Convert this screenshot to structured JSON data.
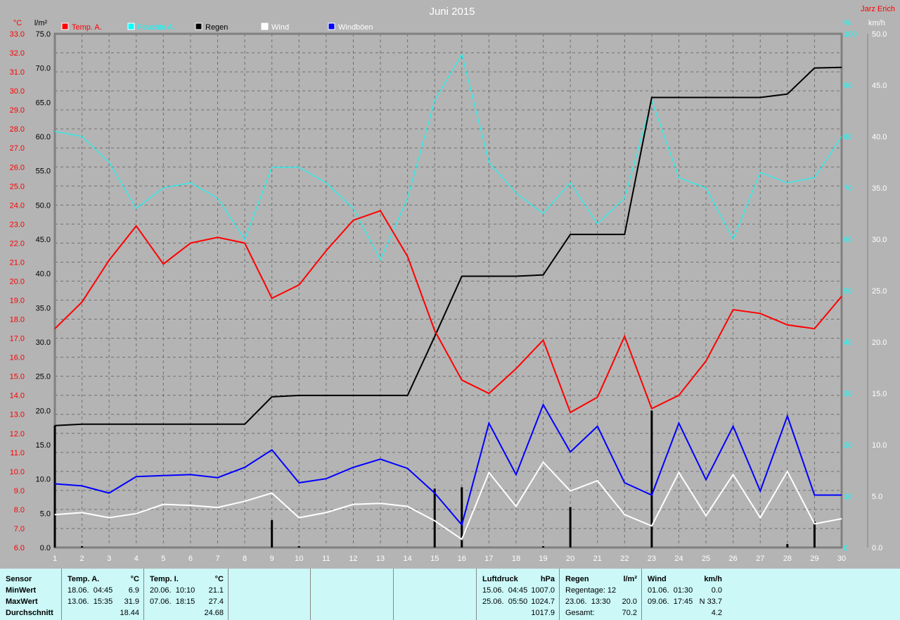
{
  "chart_data": {
    "type": "line",
    "title": "Juni 2015",
    "author": "Jarz Erich",
    "x": [
      1,
      2,
      3,
      4,
      5,
      6,
      7,
      8,
      9,
      10,
      11,
      12,
      13,
      14,
      15,
      16,
      17,
      18,
      19,
      20,
      21,
      22,
      23,
      24,
      25,
      26,
      27,
      28,
      29,
      30
    ],
    "xlim": [
      1,
      30
    ],
    "axes": {
      "temp": {
        "unit": "°C",
        "range": [
          6.0,
          33.0
        ],
        "step": 1.0,
        "color": "#ff0000",
        "side": "left"
      },
      "rain": {
        "unit": "l/m²",
        "range": [
          0.0,
          75.0
        ],
        "step": 5.0,
        "color": "#000000",
        "side": "left"
      },
      "humidity": {
        "unit": "%",
        "range": [
          0,
          100
        ],
        "step": 10,
        "color": "#00ffff",
        "side": "right"
      },
      "wind": {
        "unit": "km/h",
        "range": [
          0.0,
          50.0
        ],
        "step": 5.0,
        "color": "#ffffff",
        "side": "right"
      }
    },
    "grid": true,
    "legend_placement": "top",
    "series": [
      {
        "name": "Temp. A.",
        "axis": "temp",
        "color": "#ff0000",
        "values": [
          17.5,
          18.9,
          21.1,
          22.9,
          20.9,
          22.0,
          22.3,
          22.0,
          19.1,
          19.8,
          21.6,
          23.2,
          23.7,
          21.3,
          17.4,
          14.8,
          14.1,
          15.4,
          16.9,
          13.1,
          13.9,
          17.1,
          13.3,
          14.0,
          15.8,
          18.5,
          18.3,
          17.7,
          17.5,
          19.2
        ]
      },
      {
        "name": "Feuchte A.",
        "axis": "humidity",
        "color": "#00ffff",
        "values": [
          81,
          80,
          75,
          66,
          70,
          71,
          68,
          60,
          74,
          74,
          71,
          66,
          56,
          68,
          87,
          96,
          75,
          69,
          65,
          71,
          63,
          68,
          87,
          72,
          70,
          60,
          73,
          71,
          72,
          80
        ]
      },
      {
        "name": "Regen",
        "axis": "rain",
        "color": "#000000",
        "values": [
          17.8,
          18.0,
          18.0,
          18.0,
          18.0,
          18.0,
          18.0,
          18.0,
          22.0,
          22.2,
          22.2,
          22.2,
          22.2,
          22.2,
          30.8,
          39.6,
          39.6,
          39.6,
          39.8,
          45.7,
          45.7,
          45.7,
          65.7,
          65.7,
          65.7,
          65.7,
          65.7,
          66.2,
          70.0,
          70.1
        ],
        "daily": [
          17.8,
          0.2,
          0,
          0,
          0,
          0,
          0,
          0,
          4.0,
          0.2,
          0,
          0,
          0,
          0,
          8.6,
          8.8,
          0,
          0,
          0.2,
          5.9,
          0,
          0,
          20.0,
          0,
          0,
          0,
          0,
          0.5,
          3.8,
          0
        ]
      },
      {
        "name": "Wind",
        "axis": "wind",
        "color": "#ffffff",
        "values": [
          3.2,
          3.4,
          2.9,
          3.3,
          4.2,
          4.1,
          3.9,
          4.5,
          5.3,
          2.9,
          3.4,
          4.2,
          4.3,
          4.0,
          2.6,
          0.8,
          7.3,
          4.0,
          8.3,
          5.5,
          6.5,
          3.2,
          2.1,
          7.3,
          3.1,
          7.1,
          2.9,
          7.4,
          2.3,
          2.8
        ]
      },
      {
        "name": "Windböen",
        "axis": "wind",
        "color": "#0000ff",
        "values": [
          6.2,
          6.0,
          5.3,
          6.9,
          7.0,
          7.1,
          6.8,
          7.8,
          9.5,
          6.3,
          6.7,
          7.8,
          8.6,
          7.7,
          5.3,
          2.2,
          12.1,
          7.1,
          13.9,
          9.3,
          11.8,
          6.3,
          5.1,
          12.1,
          6.6,
          11.8,
          5.5,
          12.8,
          5.1,
          5.1
        ]
      }
    ]
  },
  "table": [
    {
      "rows": [
        [
          "Sensor",
          ""
        ],
        [
          "MinWert",
          ""
        ],
        [
          "MaxWert",
          ""
        ],
        [
          "Durchschnitt",
          ""
        ]
      ],
      "bold": true
    },
    {
      "rows": [
        [
          "Temp. A.",
          "°C"
        ],
        [
          "18.06.  04:45",
          "6.9"
        ],
        [
          "13.06.  15:35",
          "31.9"
        ],
        [
          "",
          "18.44"
        ]
      ]
    },
    {
      "rows": [
        [
          "Temp. I.",
          "°C"
        ],
        [
          "20.06.  10:10",
          "21.1"
        ],
        [
          "07.06.  18:15",
          "27.4"
        ],
        [
          "",
          "24.68"
        ]
      ]
    },
    {
      "rows": []
    },
    {
      "rows": []
    },
    {
      "rows": []
    },
    {
      "rows": [
        [
          "Luftdruck",
          "hPa"
        ],
        [
          "15.06.  04:45",
          "1007.0"
        ],
        [
          "25.06.  05:50",
          "1024.7"
        ],
        [
          "",
          "1017.9"
        ]
      ]
    },
    {
      "rows": [
        [
          "Regen",
          "l/m²"
        ],
        [
          "Regentage: 12",
          ""
        ],
        [
          "23.06.  13:30",
          "20.0"
        ],
        [
          "Gesamt:",
          "70.2"
        ]
      ]
    },
    {
      "rows": [
        [
          "Wind",
          "km/h"
        ],
        [
          "01.06.  01:30",
          "0.0"
        ],
        [
          "09.06.  17:45",
          "N 33.7"
        ],
        [
          "",
          "4.2"
        ]
      ]
    }
  ]
}
